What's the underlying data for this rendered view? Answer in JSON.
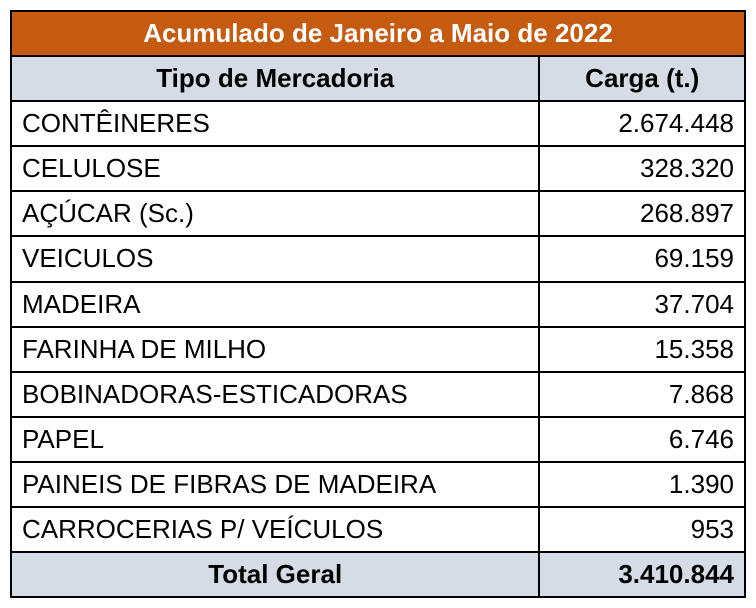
{
  "title": "Acumulado de Janeiro a Maio de 2022",
  "colors": {
    "title_bg": "#c55a11",
    "title_text": "#ffffff",
    "header_bg": "#d6dce5",
    "row_bg": "#ffffff",
    "total_bg": "#d6dce5",
    "border": "#000000",
    "text": "#000000"
  },
  "fontsize": 26,
  "columns": {
    "tipo": "Tipo de Mercadoria",
    "carga": "Carga (t.)"
  },
  "col_widths": {
    "tipo": "72%",
    "carga": "28%"
  },
  "rows": [
    {
      "tipo": "CONTÊINERES",
      "carga": "2.674.448"
    },
    {
      "tipo": "CELULOSE",
      "carga": "328.320"
    },
    {
      "tipo": "AÇÚCAR (Sc.)",
      "carga": "268.897"
    },
    {
      "tipo": "VEICULOS",
      "carga": "69.159"
    },
    {
      "tipo": "MADEIRA",
      "carga": "37.704"
    },
    {
      "tipo": "FARINHA DE MILHO",
      "carga": "15.358"
    },
    {
      "tipo": "BOBINADORAS-ESTICADORAS",
      "carga": "7.868"
    },
    {
      "tipo": "PAPEL",
      "carga": "6.746"
    },
    {
      "tipo": "PAINEIS DE FIBRAS DE MADEIRA",
      "carga": "1.390"
    },
    {
      "tipo": "CARROCERIAS P/ VEÍCULOS",
      "carga": "953"
    }
  ],
  "total": {
    "label": "Total Geral",
    "value": "3.410.844"
  }
}
